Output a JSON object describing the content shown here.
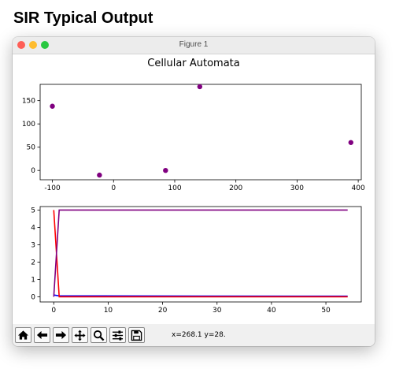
{
  "heading": "SIR Typical Output",
  "window": {
    "title": "Figure 1"
  },
  "figure": {
    "title": "Cellular Automata"
  },
  "toolbar": {
    "buttons": [
      {
        "name": "home-button",
        "icon": "home-icon"
      },
      {
        "name": "back-button",
        "icon": "arrow-left-icon"
      },
      {
        "name": "forward-button",
        "icon": "arrow-right-icon"
      },
      {
        "name": "pan-button",
        "icon": "move-icon"
      },
      {
        "name": "zoom-button",
        "icon": "magnifier-icon"
      },
      {
        "name": "configure-subplots-button",
        "icon": "sliders-icon"
      },
      {
        "name": "save-button",
        "icon": "floppy-icon"
      }
    ],
    "coordinates": "x=268.1 y=28."
  },
  "chart_data": [
    {
      "type": "scatter",
      "title": "Cellular Automata",
      "xlim": [
        -120,
        405
      ],
      "ylim": [
        -20,
        185
      ],
      "xticks": [
        -100,
        0,
        100,
        200,
        300,
        400
      ],
      "yticks": [
        0,
        50,
        100,
        150
      ],
      "grid": false,
      "color": "#800080",
      "points": [
        {
          "x": -100,
          "y": 138
        },
        {
          "x": -23,
          "y": -10
        },
        {
          "x": 85,
          "y": 0
        },
        {
          "x": 141,
          "y": 180
        },
        {
          "x": 388,
          "y": 60
        }
      ]
    },
    {
      "type": "line",
      "xlim": [
        -2.5,
        56.5
      ],
      "ylim": [
        -0.3,
        5.2
      ],
      "xticks": [
        0,
        10,
        20,
        30,
        40,
        50
      ],
      "yticks": [
        0,
        1,
        2,
        3,
        4,
        5
      ],
      "grid": false,
      "series": [
        {
          "color": "#0000ff",
          "x": [
            0,
            1,
            54
          ],
          "y": [
            0.1,
            0.05,
            0.03
          ]
        },
        {
          "color": "#ff0000",
          "x": [
            0,
            1,
            54
          ],
          "y": [
            5,
            0,
            0
          ]
        },
        {
          "color": "#800080",
          "x": [
            0,
            1,
            54
          ],
          "y": [
            0,
            5,
            5
          ]
        }
      ]
    }
  ]
}
